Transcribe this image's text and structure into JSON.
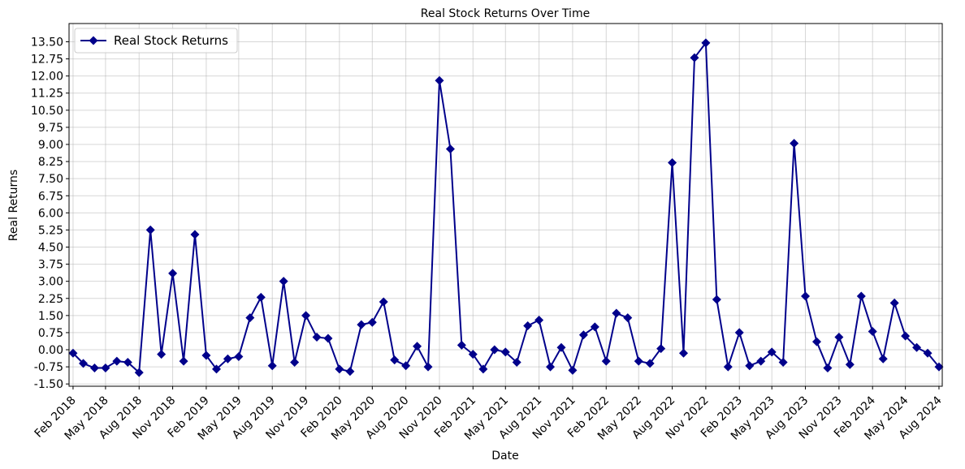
{
  "chart_data": {
    "type": "line",
    "title": "Real Stock Returns Over Time",
    "xlabel": "Date",
    "ylabel": "Real Returns",
    "grid": true,
    "legend_position": "top-left",
    "color": "#00008b",
    "marker": "diamond",
    "y_ticks": [
      -1.5,
      -0.75,
      0.0,
      0.75,
      1.5,
      2.25,
      3.0,
      3.75,
      4.5,
      5.25,
      6.0,
      6.75,
      7.5,
      8.25,
      9.0,
      9.75,
      10.5,
      11.25,
      12.0,
      12.75,
      13.5
    ],
    "ylim": [
      -1.6,
      14.3
    ],
    "xlim": [
      "2018-01-21",
      "2024-08-10"
    ],
    "x_ticks": [
      {
        "date": "2018-02-01",
        "label": "Feb 2018"
      },
      {
        "date": "2018-05-01",
        "label": "May 2018"
      },
      {
        "date": "2018-08-01",
        "label": "Aug 2018"
      },
      {
        "date": "2018-11-01",
        "label": "Nov 2018"
      },
      {
        "date": "2019-02-01",
        "label": "Feb 2019"
      },
      {
        "date": "2019-05-01",
        "label": "May 2019"
      },
      {
        "date": "2019-08-01",
        "label": "Aug 2019"
      },
      {
        "date": "2019-11-01",
        "label": "Nov 2019"
      },
      {
        "date": "2020-02-01",
        "label": "Feb 2020"
      },
      {
        "date": "2020-05-01",
        "label": "May 2020"
      },
      {
        "date": "2020-08-01",
        "label": "Aug 2020"
      },
      {
        "date": "2020-11-01",
        "label": "Nov 2020"
      },
      {
        "date": "2021-02-01",
        "label": "Feb 2021"
      },
      {
        "date": "2021-05-01",
        "label": "May 2021"
      },
      {
        "date": "2021-08-01",
        "label": "Aug 2021"
      },
      {
        "date": "2021-11-01",
        "label": "Nov 2021"
      },
      {
        "date": "2022-02-01",
        "label": "Feb 2022"
      },
      {
        "date": "2022-05-01",
        "label": "May 2022"
      },
      {
        "date": "2022-08-01",
        "label": "Aug 2022"
      },
      {
        "date": "2022-11-01",
        "label": "Nov 2022"
      },
      {
        "date": "2023-02-01",
        "label": "Feb 2023"
      },
      {
        "date": "2023-05-01",
        "label": "May 2023"
      },
      {
        "date": "2023-08-01",
        "label": "Aug 2023"
      },
      {
        "date": "2023-11-01",
        "label": "Nov 2023"
      },
      {
        "date": "2024-02-01",
        "label": "Feb 2024"
      },
      {
        "date": "2024-05-01",
        "label": "May 2024"
      },
      {
        "date": "2024-08-01",
        "label": "Aug 2024"
      }
    ],
    "series": [
      {
        "name": "Real Stock Returns",
        "points": [
          {
            "x": "2018-02-01",
            "y": -0.15
          },
          {
            "x": "2018-03-01",
            "y": -0.6
          },
          {
            "x": "2018-04-01",
            "y": -0.8
          },
          {
            "x": "2018-05-01",
            "y": -0.8
          },
          {
            "x": "2018-06-01",
            "y": -0.5
          },
          {
            "x": "2018-07-01",
            "y": -0.55
          },
          {
            "x": "2018-08-01",
            "y": -1.0
          },
          {
            "x": "2018-09-01",
            "y": 5.25
          },
          {
            "x": "2018-10-01",
            "y": -0.2
          },
          {
            "x": "2018-11-01",
            "y": 3.35
          },
          {
            "x": "2018-12-01",
            "y": -0.5
          },
          {
            "x": "2019-01-01",
            "y": 5.05
          },
          {
            "x": "2019-02-01",
            "y": -0.25
          },
          {
            "x": "2019-03-01",
            "y": -0.85
          },
          {
            "x": "2019-04-01",
            "y": -0.4
          },
          {
            "x": "2019-05-01",
            "y": -0.3
          },
          {
            "x": "2019-06-01",
            "y": 1.4
          },
          {
            "x": "2019-07-01",
            "y": 2.3
          },
          {
            "x": "2019-08-01",
            "y": -0.7
          },
          {
            "x": "2019-09-01",
            "y": 3.0
          },
          {
            "x": "2019-10-01",
            "y": -0.55
          },
          {
            "x": "2019-11-01",
            "y": 1.5
          },
          {
            "x": "2019-12-01",
            "y": 0.55
          },
          {
            "x": "2020-01-01",
            "y": 0.5
          },
          {
            "x": "2020-02-01",
            "y": -0.85
          },
          {
            "x": "2020-03-01",
            "y": -0.95
          },
          {
            "x": "2020-04-01",
            "y": 1.1
          },
          {
            "x": "2020-05-01",
            "y": 1.2
          },
          {
            "x": "2020-06-01",
            "y": 2.1
          },
          {
            "x": "2020-07-01",
            "y": -0.45
          },
          {
            "x": "2020-08-01",
            "y": -0.7
          },
          {
            "x": "2020-09-01",
            "y": 0.15
          },
          {
            "x": "2020-10-01",
            "y": -0.75
          },
          {
            "x": "2020-11-01",
            "y": 11.8
          },
          {
            "x": "2020-12-01",
            "y": 8.8
          },
          {
            "x": "2021-01-01",
            "y": 0.2
          },
          {
            "x": "2021-02-01",
            "y": -0.2
          },
          {
            "x": "2021-03-01",
            "y": -0.85
          },
          {
            "x": "2021-04-01",
            "y": 0.0
          },
          {
            "x": "2021-05-01",
            "y": -0.1
          },
          {
            "x": "2021-06-01",
            "y": -0.55
          },
          {
            "x": "2021-07-01",
            "y": 1.05
          },
          {
            "x": "2021-08-01",
            "y": 1.3
          },
          {
            "x": "2021-09-01",
            "y": -0.75
          },
          {
            "x": "2021-10-01",
            "y": 0.1
          },
          {
            "x": "2021-11-01",
            "y": -0.9
          },
          {
            "x": "2021-12-01",
            "y": 0.65
          },
          {
            "x": "2022-01-01",
            "y": 1.0
          },
          {
            "x": "2022-02-01",
            "y": -0.5
          },
          {
            "x": "2022-03-01",
            "y": 1.6
          },
          {
            "x": "2022-04-01",
            "y": 1.4
          },
          {
            "x": "2022-05-01",
            "y": -0.5
          },
          {
            "x": "2022-06-01",
            "y": -0.6
          },
          {
            "x": "2022-07-01",
            "y": 0.05
          },
          {
            "x": "2022-08-01",
            "y": 8.2
          },
          {
            "x": "2022-09-01",
            "y": -0.15
          },
          {
            "x": "2022-10-01",
            "y": 12.8
          },
          {
            "x": "2022-11-01",
            "y": 13.45
          },
          {
            "x": "2022-12-01",
            "y": 2.2
          },
          {
            "x": "2023-01-01",
            "y": -0.75
          },
          {
            "x": "2023-02-01",
            "y": 0.75
          },
          {
            "x": "2023-03-01",
            "y": -0.7
          },
          {
            "x": "2023-04-01",
            "y": -0.5
          },
          {
            "x": "2023-05-01",
            "y": -0.1
          },
          {
            "x": "2023-06-01",
            "y": -0.55
          },
          {
            "x": "2023-07-01",
            "y": 9.05
          },
          {
            "x": "2023-08-01",
            "y": 2.35
          },
          {
            "x": "2023-09-01",
            "y": 0.35
          },
          {
            "x": "2023-10-01",
            "y": -0.8
          },
          {
            "x": "2023-11-01",
            "y": 0.55
          },
          {
            "x": "2023-12-01",
            "y": -0.65
          },
          {
            "x": "2024-01-01",
            "y": 2.35
          },
          {
            "x": "2024-02-01",
            "y": 0.8
          },
          {
            "x": "2024-03-01",
            "y": -0.4
          },
          {
            "x": "2024-04-01",
            "y": 2.05
          },
          {
            "x": "2024-05-01",
            "y": 0.6
          },
          {
            "x": "2024-06-01",
            "y": 0.1
          },
          {
            "x": "2024-07-01",
            "y": -0.15
          },
          {
            "x": "2024-08-01",
            "y": -0.75
          }
        ]
      }
    ]
  }
}
